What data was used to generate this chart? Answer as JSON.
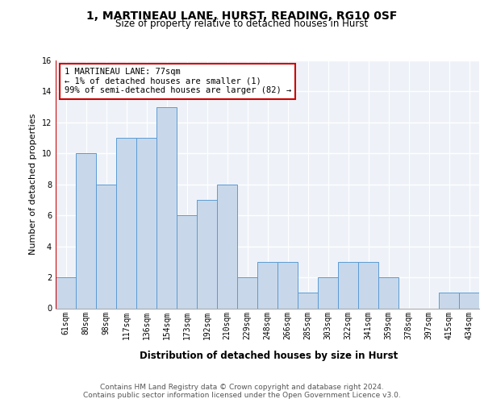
{
  "title1": "1, MARTINEAU LANE, HURST, READING, RG10 0SF",
  "title2": "Size of property relative to detached houses in Hurst",
  "xlabel": "Distribution of detached houses by size in Hurst",
  "ylabel": "Number of detached properties",
  "categories": [
    "61sqm",
    "80sqm",
    "98sqm",
    "117sqm",
    "136sqm",
    "154sqm",
    "173sqm",
    "192sqm",
    "210sqm",
    "229sqm",
    "248sqm",
    "266sqm",
    "285sqm",
    "303sqm",
    "322sqm",
    "341sqm",
    "359sqm",
    "378sqm",
    "397sqm",
    "415sqm",
    "434sqm"
  ],
  "values": [
    2,
    10,
    8,
    11,
    11,
    13,
    6,
    7,
    8,
    2,
    3,
    3,
    1,
    2,
    3,
    3,
    2,
    0,
    0,
    1,
    1
  ],
  "bar_color": "#c8d8ea",
  "bar_edge_color": "#5b9bd5",
  "highlight_color": "#cc0000",
  "annotation_text": "1 MARTINEAU LANE: 77sqm\n← 1% of detached houses are smaller (1)\n99% of semi-detached houses are larger (82) →",
  "annotation_box_edge": "#cc0000",
  "footer": "Contains HM Land Registry data © Crown copyright and database right 2024.\nContains public sector information licensed under the Open Government Licence v3.0.",
  "ylim": [
    0,
    16
  ],
  "yticks": [
    0,
    2,
    4,
    6,
    8,
    10,
    12,
    14,
    16
  ],
  "background_color": "#eef2f8",
  "grid_color": "#ffffff",
  "title1_fontsize": 10,
  "title2_fontsize": 8.5,
  "xlabel_fontsize": 8.5,
  "ylabel_fontsize": 8,
  "tick_fontsize": 7,
  "footer_fontsize": 6.5,
  "annotation_fontsize": 7.5
}
